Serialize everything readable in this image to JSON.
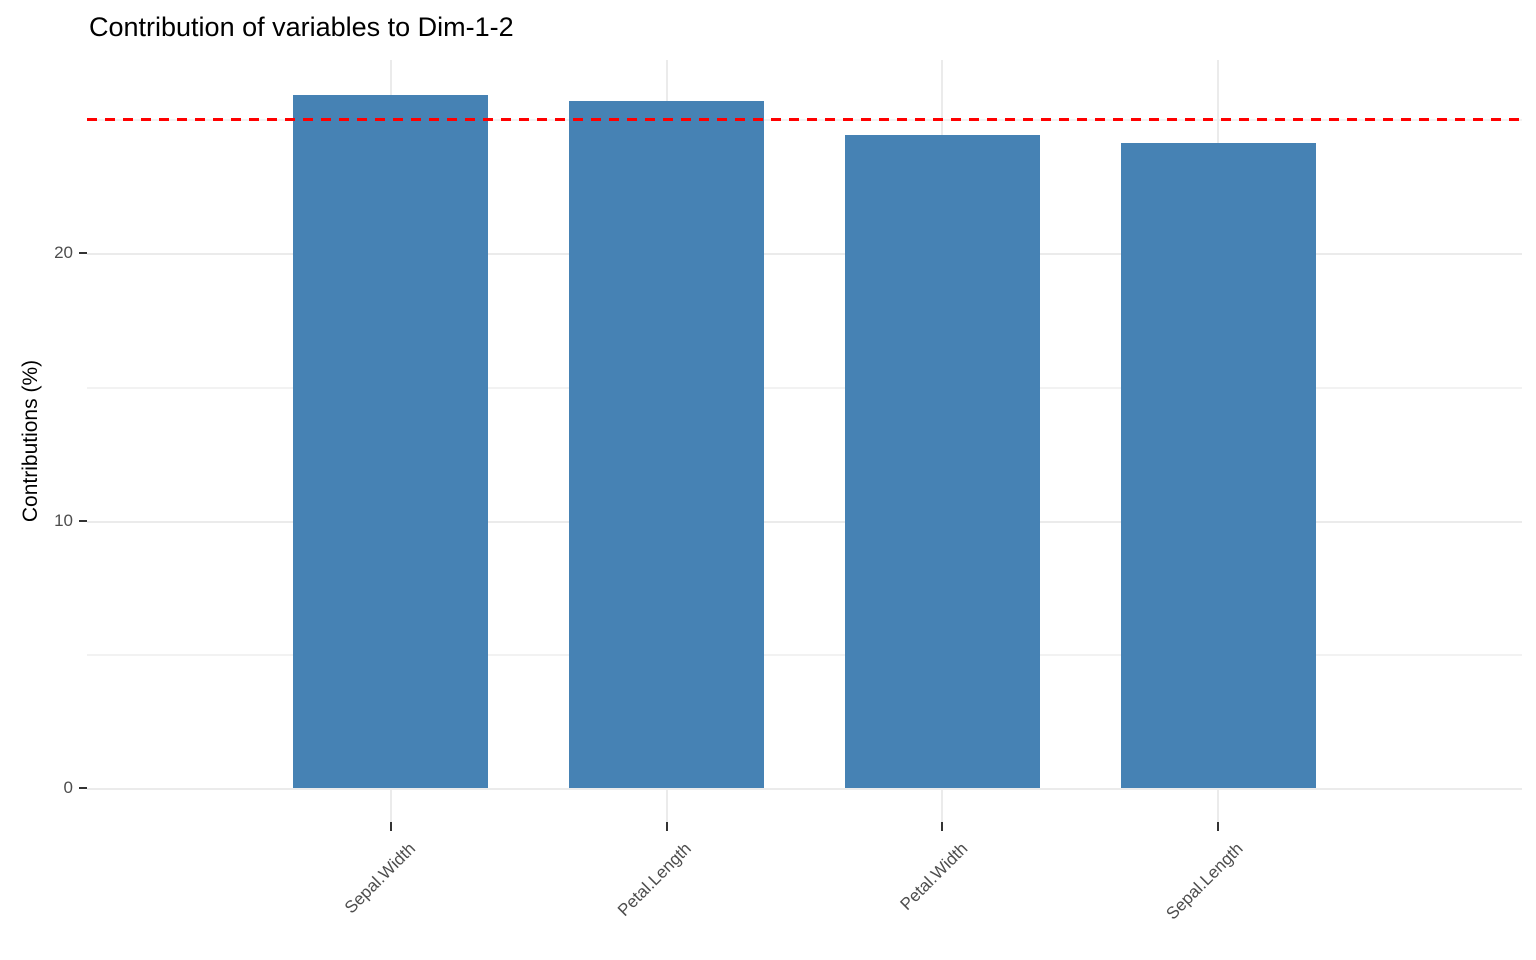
{
  "chart_data": {
    "type": "bar",
    "title": "Contribution of variables to Dim-1-2",
    "xlabel": "",
    "ylabel": "Contributions (%)",
    "categories": [
      "Sepal.Width",
      "Petal.Length",
      "Petal.Width",
      "Sepal.Length"
    ],
    "values": [
      25.9,
      25.7,
      24.4,
      24.1
    ],
    "yticks": [
      0,
      10,
      20
    ],
    "yticks_minor": [
      5,
      15,
      25
    ],
    "ylim": [
      -1.3,
      27.25
    ],
    "bar_color": "#4682b4",
    "grid": "on",
    "legend": "none",
    "reference_line": {
      "value": 25,
      "color": "#ff0000",
      "style": "dashed",
      "meaning": "expected average contribution"
    },
    "text_color_axis": "#4d4d4d",
    "gridline_color": "#ebebeb",
    "background": "#ffffff"
  }
}
